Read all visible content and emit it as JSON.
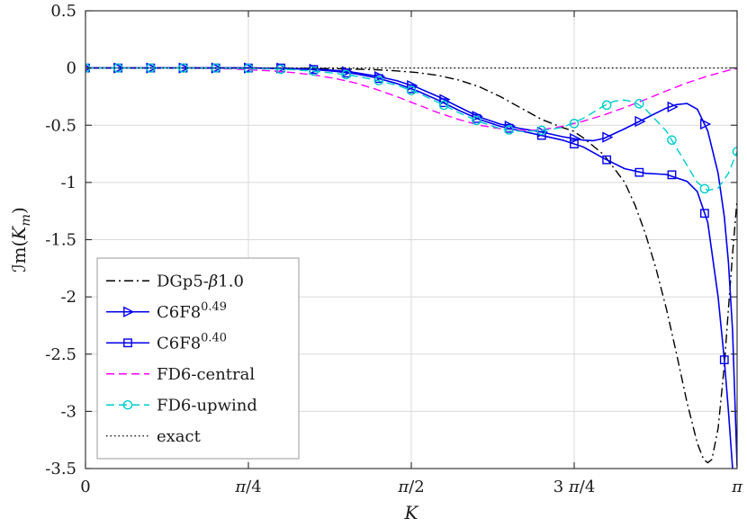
{
  "chart_data": {
    "type": "line",
    "title": "",
    "xlabel_rich": [
      {
        "t": "K",
        "i": true
      }
    ],
    "ylabel_rich": [
      {
        "t": "ℐm("
      },
      {
        "t": "K",
        "i": true
      },
      {
        "t": "m",
        "sub": true,
        "i": true
      },
      {
        "t": ")"
      }
    ],
    "x_range": [
      0,
      3.1416
    ],
    "y_range": [
      -3.5,
      0.5
    ],
    "grid": true,
    "axis_color": "#262626",
    "grid_color": "#d9d9d9",
    "background": "#ffffff",
    "x_ticks": [
      {
        "v": 0,
        "label": [
          {
            "t": "0"
          }
        ]
      },
      {
        "v": 0.7854,
        "label": [
          {
            "t": "π",
            "i": true
          },
          {
            "t": "/4"
          }
        ]
      },
      {
        "v": 1.5708,
        "label": [
          {
            "t": "π",
            "i": true
          },
          {
            "t": "/2"
          }
        ]
      },
      {
        "v": 2.3562,
        "label": [
          {
            "t": "3 "
          },
          {
            "t": "π",
            "i": true
          },
          {
            "t": "/4"
          }
        ]
      },
      {
        "v": 3.1416,
        "label": [
          {
            "t": "π",
            "i": true
          }
        ]
      }
    ],
    "y_ticks": [
      {
        "v": 0.5,
        "label": "0.5"
      },
      {
        "v": 0,
        "label": "0"
      },
      {
        "v": -0.5,
        "label": "-0.5"
      },
      {
        "v": -1,
        "label": "-1"
      },
      {
        "v": -1.5,
        "label": "-1.5"
      },
      {
        "v": -2,
        "label": "-2"
      },
      {
        "v": -2.5,
        "label": "-2.5"
      },
      {
        "v": -3,
        "label": "-3"
      },
      {
        "v": -3.5,
        "label": "-3.5"
      }
    ],
    "legend": {
      "position": "lower-left",
      "border_color": "#999999",
      "background": "#ffffff"
    },
    "series": [
      {
        "name": "DGp5-beta1.0",
        "label_rich": [
          {
            "t": "DGp5-"
          },
          {
            "t": "β",
            "i": true
          },
          {
            "t": "1.0"
          }
        ],
        "color": "#000000",
        "line_style": "dashdot",
        "marker": "none",
        "line": [
          [
            0,
            0
          ],
          [
            0.4,
            0
          ],
          [
            0.8,
            -0.001
          ],
          [
            1.0,
            -0.002
          ],
          [
            1.2,
            -0.006
          ],
          [
            1.4,
            -0.015
          ],
          [
            1.5,
            -0.025
          ],
          [
            1.6,
            -0.04
          ],
          [
            1.7,
            -0.065
          ],
          [
            1.8,
            -0.105
          ],
          [
            1.9,
            -0.165
          ],
          [
            2.0,
            -0.25
          ],
          [
            2.1,
            -0.35
          ],
          [
            2.2,
            -0.45
          ],
          [
            2.3,
            -0.52
          ],
          [
            2.35,
            -0.55
          ],
          [
            2.4,
            -0.61
          ],
          [
            2.5,
            -0.76
          ],
          [
            2.6,
            -1.0
          ],
          [
            2.65,
            -1.2
          ],
          [
            2.7,
            -1.45
          ],
          [
            2.75,
            -1.75
          ],
          [
            2.8,
            -2.1
          ],
          [
            2.85,
            -2.5
          ],
          [
            2.9,
            -2.92
          ],
          [
            2.95,
            -3.28
          ],
          [
            2.98,
            -3.42
          ],
          [
            3.0,
            -3.45
          ],
          [
            3.02,
            -3.42
          ],
          [
            3.05,
            -3.15
          ],
          [
            3.08,
            -2.6
          ],
          [
            3.1,
            -2.1
          ],
          [
            3.12,
            -1.62
          ],
          [
            3.1416,
            -1.15
          ]
        ],
        "markers": []
      },
      {
        "name": "C6F8-0.49",
        "label_rich": [
          {
            "t": "C6F8"
          },
          {
            "t": "0.49",
            "sup": true
          }
        ],
        "color": "#0000ee",
        "line_style": "solid",
        "marker": "triangle-right",
        "line": [
          [
            0,
            0
          ],
          [
            0.4,
            0
          ],
          [
            0.8,
            0
          ],
          [
            1.0,
            -0.005
          ],
          [
            1.1,
            -0.01
          ],
          [
            1.2,
            -0.02
          ],
          [
            1.3,
            -0.04
          ],
          [
            1.4,
            -0.07
          ],
          [
            1.5,
            -0.11
          ],
          [
            1.6,
            -0.17
          ],
          [
            1.7,
            -0.25
          ],
          [
            1.8,
            -0.34
          ],
          [
            1.9,
            -0.43
          ],
          [
            2.0,
            -0.49
          ],
          [
            2.1,
            -0.53
          ],
          [
            2.2,
            -0.56
          ],
          [
            2.3,
            -0.6
          ],
          [
            2.4,
            -0.63
          ],
          [
            2.45,
            -0.635
          ],
          [
            2.5,
            -0.615
          ],
          [
            2.6,
            -0.53
          ],
          [
            2.7,
            -0.44
          ],
          [
            2.8,
            -0.35
          ],
          [
            2.85,
            -0.32
          ],
          [
            2.9,
            -0.31
          ],
          [
            2.95,
            -0.36
          ],
          [
            3.0,
            -0.55
          ],
          [
            3.05,
            -0.92
          ],
          [
            3.08,
            -1.3
          ],
          [
            3.1,
            -1.7
          ],
          [
            3.12,
            -2.3
          ],
          [
            3.1416,
            -3.48
          ]
        ],
        "markers": [
          [
            0,
            0
          ],
          [
            0.157,
            0
          ],
          [
            0.314,
            0
          ],
          [
            0.471,
            0
          ],
          [
            0.628,
            0
          ],
          [
            0.785,
            0
          ],
          [
            0.942,
            0
          ],
          [
            1.1,
            -0.01
          ],
          [
            1.257,
            -0.031
          ],
          [
            1.414,
            -0.075
          ],
          [
            1.571,
            -0.153
          ],
          [
            1.728,
            -0.275
          ],
          [
            1.885,
            -0.421
          ],
          [
            2.042,
            -0.507
          ],
          [
            2.199,
            -0.56
          ],
          [
            2.356,
            -0.617
          ],
          [
            2.513,
            -0.605
          ],
          [
            2.67,
            -0.467
          ],
          [
            2.827,
            -0.34
          ],
          [
            2.985,
            -0.49
          ]
        ]
      },
      {
        "name": "C6F8-0.40",
        "label_rich": [
          {
            "t": "C6F8"
          },
          {
            "t": "0.40",
            "sup": true
          }
        ],
        "color": "#0000ee",
        "line_style": "solid",
        "marker": "square",
        "line": [
          [
            0,
            0
          ],
          [
            0.4,
            0
          ],
          [
            0.8,
            0
          ],
          [
            1.0,
            -0.006
          ],
          [
            1.1,
            -0.013
          ],
          [
            1.2,
            -0.028
          ],
          [
            1.3,
            -0.05
          ],
          [
            1.4,
            -0.085
          ],
          [
            1.5,
            -0.135
          ],
          [
            1.6,
            -0.2
          ],
          [
            1.7,
            -0.28
          ],
          [
            1.8,
            -0.37
          ],
          [
            1.9,
            -0.45
          ],
          [
            2.0,
            -0.51
          ],
          [
            2.1,
            -0.55
          ],
          [
            2.2,
            -0.59
          ],
          [
            2.3,
            -0.63
          ],
          [
            2.4,
            -0.69
          ],
          [
            2.5,
            -0.79
          ],
          [
            2.6,
            -0.88
          ],
          [
            2.7,
            -0.92
          ],
          [
            2.8,
            -0.93
          ],
          [
            2.9,
            -0.99
          ],
          [
            2.95,
            -1.08
          ],
          [
            3.0,
            -1.35
          ],
          [
            3.05,
            -2.0
          ],
          [
            3.08,
            -2.55
          ],
          [
            3.1,
            -3.0
          ],
          [
            3.12,
            -3.5
          ],
          [
            3.13,
            -3.8
          ]
        ],
        "markers": [
          [
            0,
            0
          ],
          [
            0.157,
            0
          ],
          [
            0.314,
            0
          ],
          [
            0.471,
            0
          ],
          [
            0.628,
            0
          ],
          [
            0.785,
            0
          ],
          [
            0.942,
            0
          ],
          [
            1.1,
            -0.013
          ],
          [
            1.257,
            -0.044
          ],
          [
            1.414,
            -0.092
          ],
          [
            1.571,
            -0.181
          ],
          [
            1.728,
            -0.303
          ],
          [
            1.885,
            -0.441
          ],
          [
            2.042,
            -0.527
          ],
          [
            2.199,
            -0.589
          ],
          [
            2.356,
            -0.664
          ],
          [
            2.513,
            -0.802
          ],
          [
            2.67,
            -0.912
          ],
          [
            2.827,
            -0.933
          ],
          [
            2.985,
            -1.27
          ],
          [
            3.08,
            -2.55
          ]
        ]
      },
      {
        "name": "FD6-central",
        "label_rich": [
          {
            "t": "FD6-central"
          }
        ],
        "color": "#ff00ff",
        "line_style": "dashed",
        "marker": "none",
        "line": [
          [
            0,
            0
          ],
          [
            0.3,
            0
          ],
          [
            0.5,
            -0.002
          ],
          [
            0.7,
            -0.008
          ],
          [
            0.9,
            -0.025
          ],
          [
            1.0,
            -0.04
          ],
          [
            1.1,
            -0.06
          ],
          [
            1.2,
            -0.09
          ],
          [
            1.3,
            -0.13
          ],
          [
            1.4,
            -0.185
          ],
          [
            1.5,
            -0.25
          ],
          [
            1.6,
            -0.32
          ],
          [
            1.7,
            -0.39
          ],
          [
            1.8,
            -0.45
          ],
          [
            1.9,
            -0.5
          ],
          [
            2.0,
            -0.53
          ],
          [
            2.1,
            -0.545
          ],
          [
            2.2,
            -0.54
          ],
          [
            2.3,
            -0.51
          ],
          [
            2.4,
            -0.465
          ],
          [
            2.5,
            -0.41
          ],
          [
            2.6,
            -0.345
          ],
          [
            2.7,
            -0.275
          ],
          [
            2.8,
            -0.2
          ],
          [
            2.9,
            -0.13
          ],
          [
            3.0,
            -0.07
          ],
          [
            3.1,
            -0.02
          ],
          [
            3.1416,
            -0.005
          ]
        ],
        "markers": []
      },
      {
        "name": "FD6-upwind",
        "label_rich": [
          {
            "t": "FD6-upwind"
          }
        ],
        "color": "#00cccc",
        "line_style": "dashed",
        "marker": "circle",
        "line": [
          [
            0,
            0
          ],
          [
            0.3,
            0
          ],
          [
            0.5,
            -0.001
          ],
          [
            0.7,
            -0.003
          ],
          [
            0.9,
            -0.008
          ],
          [
            1.0,
            -0.015
          ],
          [
            1.1,
            -0.027
          ],
          [
            1.2,
            -0.045
          ],
          [
            1.3,
            -0.07
          ],
          [
            1.4,
            -0.105
          ],
          [
            1.5,
            -0.15
          ],
          [
            1.6,
            -0.215
          ],
          [
            1.7,
            -0.3
          ],
          [
            1.8,
            -0.39
          ],
          [
            1.9,
            -0.47
          ],
          [
            2.0,
            -0.53
          ],
          [
            2.1,
            -0.555
          ],
          [
            2.2,
            -0.545
          ],
          [
            2.3,
            -0.52
          ],
          [
            2.4,
            -0.44
          ],
          [
            2.5,
            -0.33
          ],
          [
            2.55,
            -0.29
          ],
          [
            2.6,
            -0.28
          ],
          [
            2.65,
            -0.3
          ],
          [
            2.7,
            -0.36
          ],
          [
            2.8,
            -0.55
          ],
          [
            2.9,
            -0.85
          ],
          [
            2.95,
            -1.0
          ],
          [
            3.0,
            -1.07
          ],
          [
            3.05,
            -1.05
          ],
          [
            3.1,
            -0.92
          ],
          [
            3.1416,
            -0.73
          ]
        ],
        "markers": [
          [
            0,
            0
          ],
          [
            0.157,
            0
          ],
          [
            0.314,
            0
          ],
          [
            0.471,
            0
          ],
          [
            0.628,
            0
          ],
          [
            0.785,
            -0.003
          ],
          [
            0.942,
            -0.011
          ],
          [
            1.1,
            -0.027
          ],
          [
            1.257,
            -0.058
          ],
          [
            1.414,
            -0.11
          ],
          [
            1.571,
            -0.196
          ],
          [
            1.728,
            -0.325
          ],
          [
            1.885,
            -0.458
          ],
          [
            2.042,
            -0.541
          ],
          [
            2.199,
            -0.545
          ],
          [
            2.356,
            -0.485
          ],
          [
            2.513,
            -0.324
          ],
          [
            2.67,
            -0.312
          ],
          [
            2.827,
            -0.63
          ],
          [
            2.985,
            -1.055
          ],
          [
            3.1416,
            -0.73
          ]
        ]
      },
      {
        "name": "exact",
        "label_rich": [
          {
            "t": "exact"
          }
        ],
        "color": "#000000",
        "line_style": "dotted",
        "marker": "none",
        "line": [
          [
            0,
            0
          ],
          [
            3.1416,
            0
          ]
        ],
        "markers": []
      }
    ]
  }
}
